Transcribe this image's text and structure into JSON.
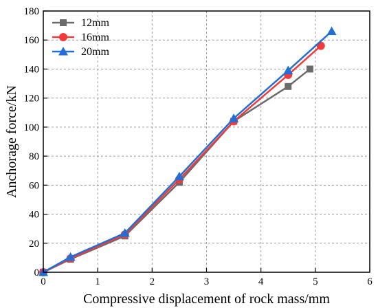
{
  "chart_data": {
    "type": "line",
    "title": "",
    "xlabel": "Compressive displacement of rock mass/mm",
    "ylabel": "Anchorage force/kN",
    "xlim": [
      0,
      6
    ],
    "ylim": [
      0,
      180
    ],
    "xticks": [
      "0",
      "1",
      "2",
      "3",
      "4",
      "5",
      "6"
    ],
    "yticks": [
      "0",
      "20",
      "40",
      "60",
      "80",
      "100",
      "120",
      "140",
      "160",
      "180"
    ],
    "grid": true,
    "legend_position": "top-left",
    "series": [
      {
        "name": "12mm",
        "color": "#6b6b6b",
        "marker": "square",
        "x": [
          0,
          0.5,
          1.5,
          2.5,
          3.5,
          4.5,
          4.9
        ],
        "y": [
          0,
          9,
          25,
          62,
          104,
          128,
          140
        ]
      },
      {
        "name": "16mm",
        "color": "#f23a3a",
        "marker": "circle",
        "x": [
          0,
          0.5,
          1.5,
          2.5,
          3.5,
          4.5,
          5.1
        ],
        "y": [
          0,
          9.5,
          26,
          64,
          104,
          136,
          156
        ]
      },
      {
        "name": "20mm",
        "color": "#1f6fd6",
        "marker": "triangle",
        "x": [
          0,
          0.5,
          1.5,
          2.5,
          3.5,
          4.5,
          5.3
        ],
        "y": [
          0,
          10.5,
          27,
          66,
          106,
          139,
          166
        ]
      }
    ]
  }
}
